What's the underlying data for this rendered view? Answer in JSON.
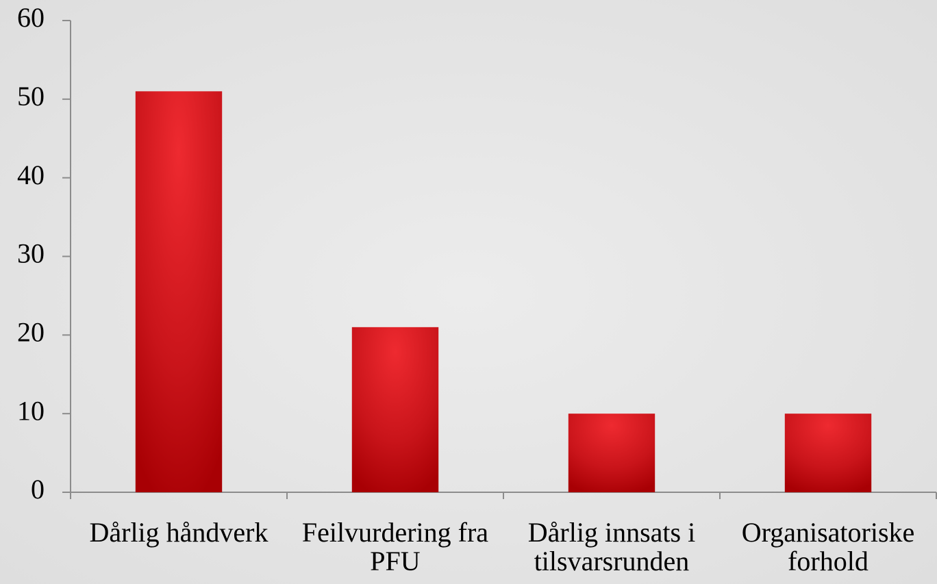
{
  "chart_data": {
    "type": "bar",
    "categories": [
      "Dårlig håndverk",
      "Feilvurdering fra PFU",
      "Dårlig innsats i tilsvarsrunden",
      "Organisatoriske forhold"
    ],
    "values": [
      51,
      21,
      10,
      10
    ],
    "color": "#c8141a",
    "ylim": [
      0,
      60
    ],
    "yticks": [
      0,
      10,
      20,
      30,
      40,
      50,
      60
    ]
  }
}
